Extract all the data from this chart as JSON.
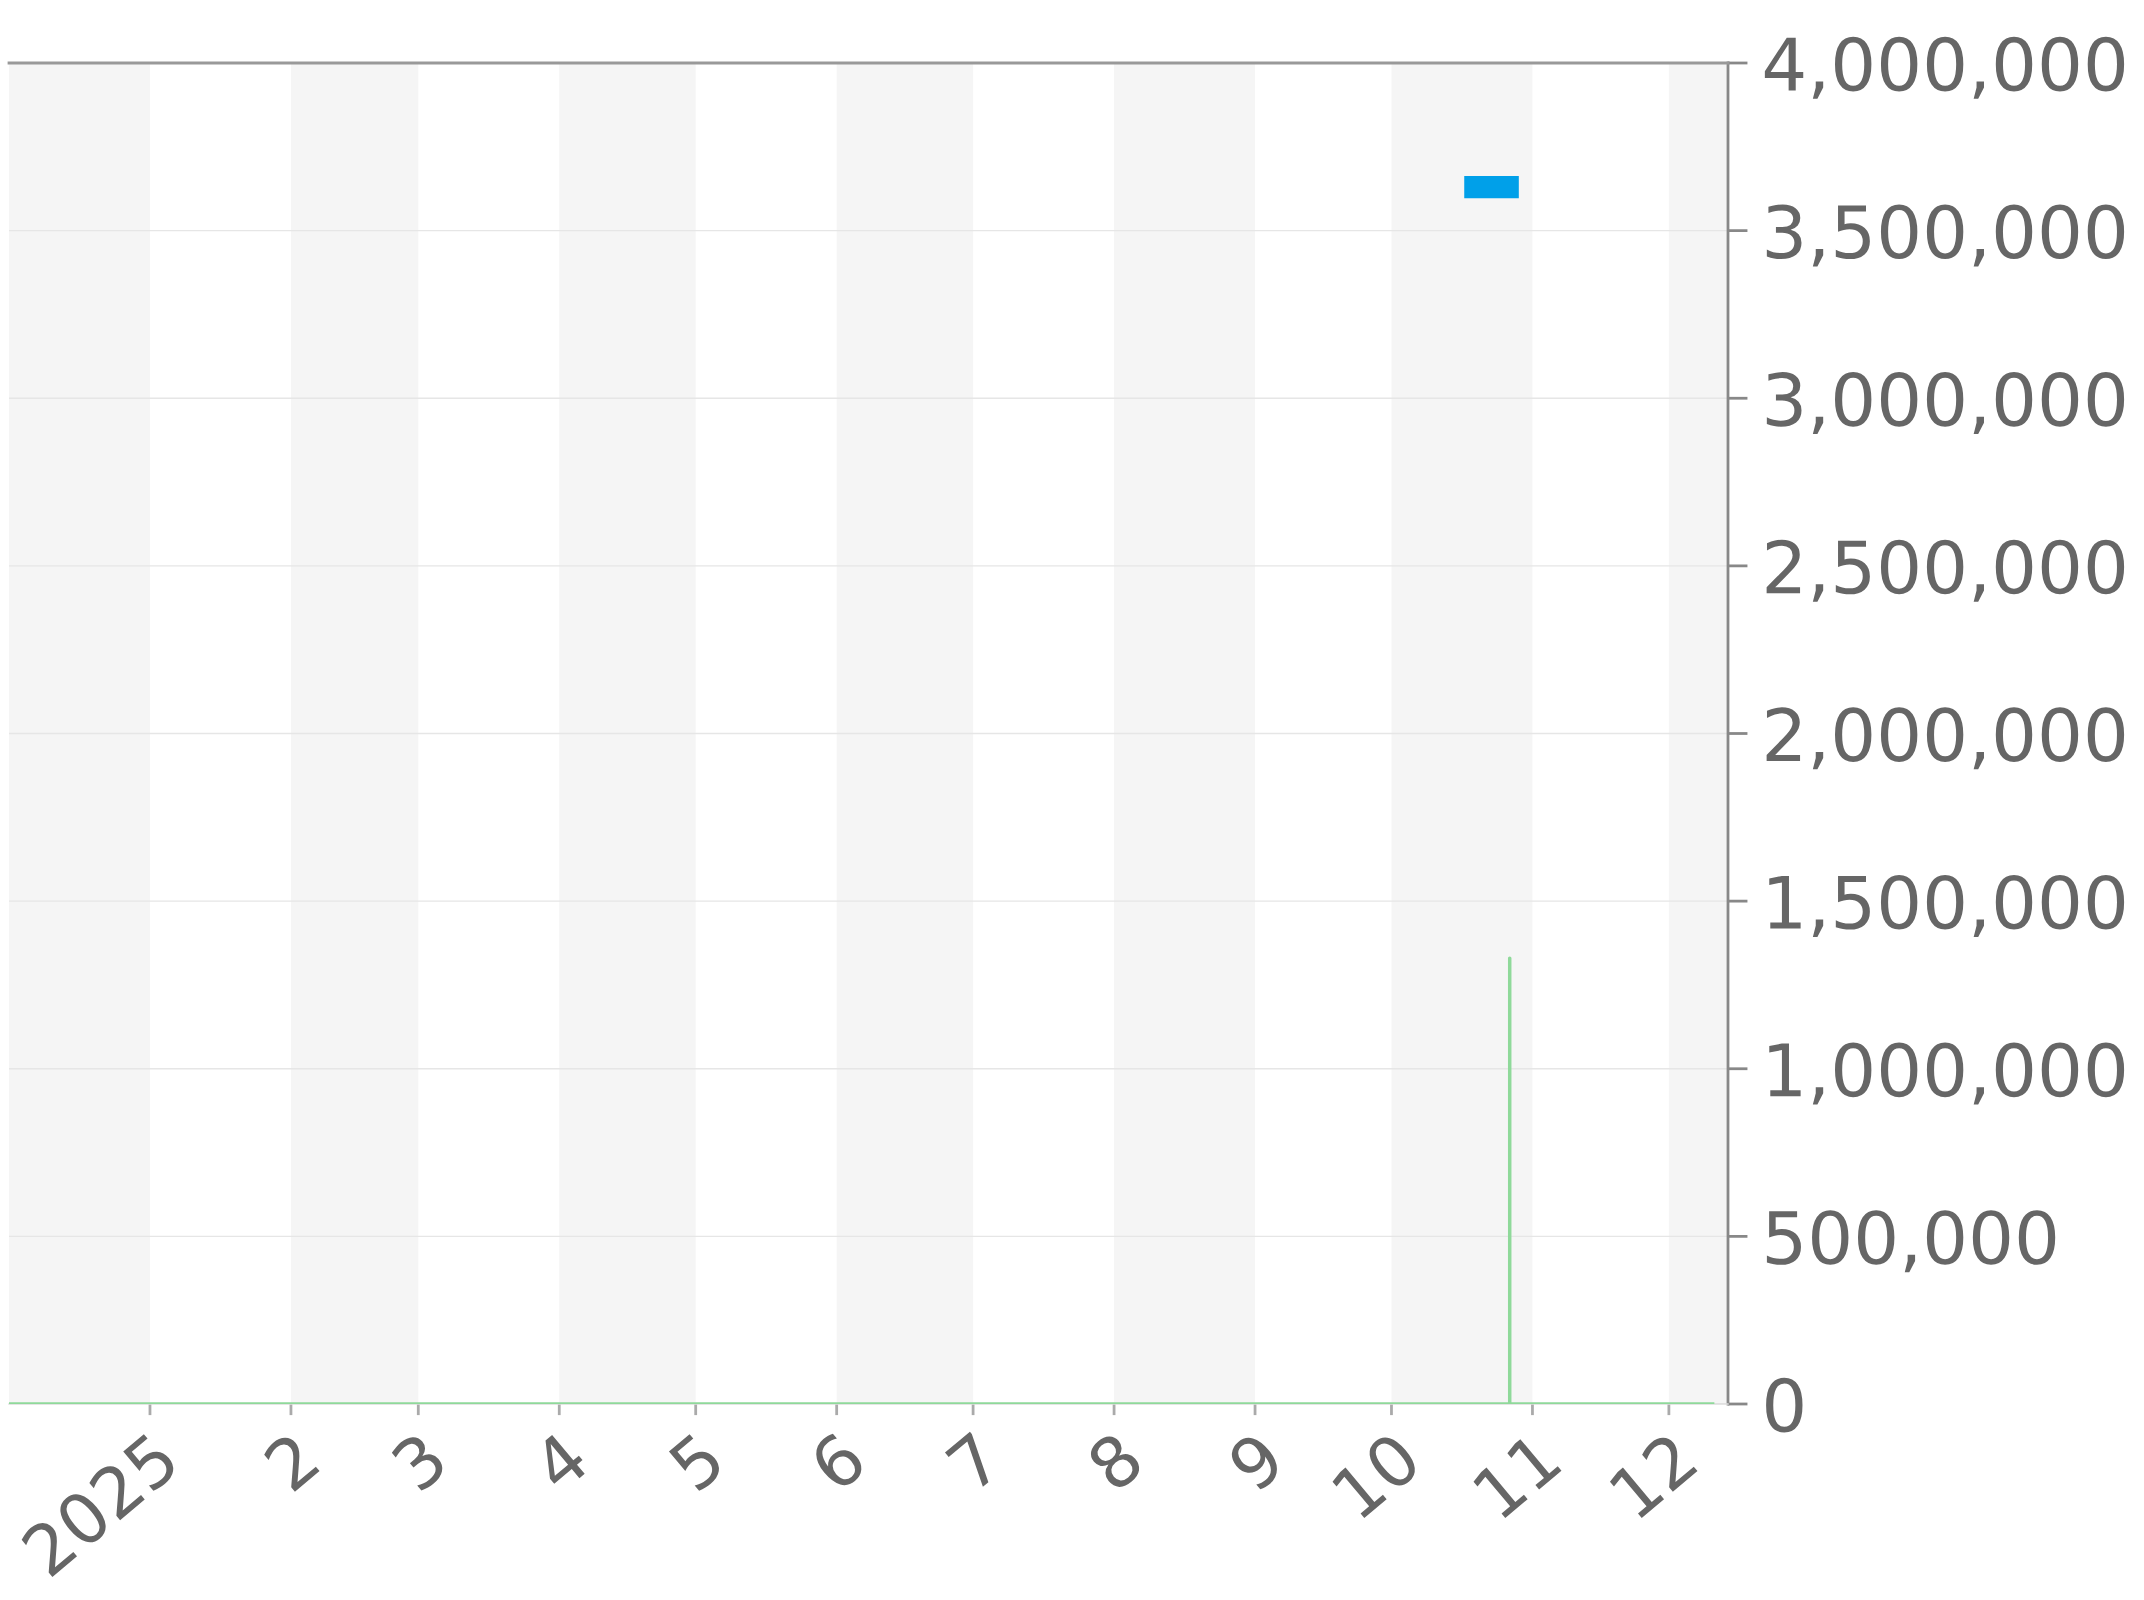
{
  "chart_data": {
    "type": "line",
    "series": [
      {
        "color": "#8fd99a",
        "x": [
          "2024-12-01",
          "2025-10-27",
          "2025-10-27",
          "2025-10-27",
          "2025-12-11"
        ],
        "values": [
          0,
          0,
          1330000,
          0,
          0
        ]
      },
      {
        "color": "#00a0e9",
        "x": [
          "2025-10-17",
          "2025-10-29"
        ],
        "values": [
          3630000,
          3630000
        ]
      }
    ],
    "xlim": [
      "2024-12-01",
      "2025-12-14"
    ],
    "xticks": [
      {
        "value": "2025-01-01",
        "label": "2025"
      },
      {
        "value": "2025-02-01",
        "label": "2"
      },
      {
        "value": "2025-03-01",
        "label": "3"
      },
      {
        "value": "2025-04-01",
        "label": "4"
      },
      {
        "value": "2025-05-01",
        "label": "5"
      },
      {
        "value": "2025-06-01",
        "label": "6"
      },
      {
        "value": "2025-07-01",
        "label": "7"
      },
      {
        "value": "2025-08-01",
        "label": "8"
      },
      {
        "value": "2025-09-01",
        "label": "9"
      },
      {
        "value": "2025-10-01",
        "label": "10"
      },
      {
        "value": "2025-11-01",
        "label": "11"
      },
      {
        "value": "2025-12-01",
        "label": "12"
      }
    ],
    "ylim": [
      0,
      4000000
    ],
    "yticks": [
      0,
      {
        "value": 500000,
        "label": "500,000"
      },
      {
        "value": 1000000,
        "label": "1,000,000"
      },
      {
        "value": 1500000,
        "label": "1,500,000"
      },
      {
        "value": 2000000,
        "label": "2,000,000"
      },
      {
        "value": 2500000,
        "label": "2,500,000"
      },
      {
        "value": 3000000,
        "label": "3,000,000"
      },
      {
        "value": 3500000,
        "label": "3,500,000"
      },
      {
        "value": 4000000,
        "label": "4,000,000"
      }
    ],
    "grid": "y",
    "bands": [
      {
        "axis": "x",
        "from": "2024-12-01",
        "to": "2025-01-01",
        "color": "#f5f5f5"
      },
      {
        "axis": "x",
        "from": "2025-02-01",
        "to": "2025-03-01",
        "color": "#f5f5f5"
      },
      {
        "axis": "x",
        "from": "2025-04-01",
        "to": "2025-05-01",
        "color": "#f5f5f5"
      },
      {
        "axis": "x",
        "from": "2025-06-01",
        "to": "2025-07-01",
        "color": "#f5f5f5"
      },
      {
        "axis": "x",
        "from": "2025-08-01",
        "to": "2025-09-01",
        "color": "#f5f5f5"
      },
      {
        "axis": "x",
        "from": "2025-10-01",
        "to": "2025-11-01",
        "color": "#f5f5f5"
      },
      {
        "axis": "x",
        "from": "2025-12-01",
        "to": "2025-12-14",
        "color": "#f5f5f5"
      }
    ]
  }
}
